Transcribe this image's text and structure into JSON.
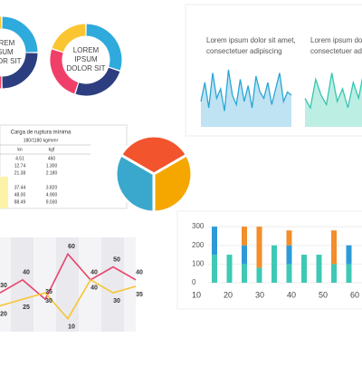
{
  "donuts": [
    {
      "lines": [
        "LOREM",
        "IPSUM",
        "DOLOR SIT"
      ],
      "values": [
        25,
        25,
        25,
        25
      ],
      "colors": [
        "#2eaadc",
        "#2c3e80",
        "#f0406a",
        "#fbc531"
      ]
    },
    {
      "lines": [
        "LOREM",
        "IPSUM",
        "DOLOR SIT"
      ],
      "values": [
        30,
        25,
        25,
        20
      ],
      "colors": [
        "#2eaadc",
        "#2c3e80",
        "#f0406a",
        "#fbc531"
      ]
    }
  ],
  "area_charts": [
    {
      "title": [
        "Lorem ipsum dolor sit amet,",
        "consectetuer adipiscing"
      ],
      "color": "#2aa6d6",
      "fill": "#bfe3f3",
      "values": [
        40,
        70,
        30,
        85,
        45,
        60,
        25,
        90,
        50,
        35,
        75,
        40,
        65,
        30,
        80,
        55,
        45,
        70,
        35,
        60,
        85,
        40,
        55,
        50
      ]
    },
    {
      "title": [
        "Lorem ipsum dolor sit",
        "consectetuer ad"
      ],
      "color": "#36c6b0",
      "fill": "#bdeee4",
      "values": [
        45,
        30,
        75,
        50,
        35,
        85,
        40,
        60,
        30,
        70,
        45,
        90,
        35,
        55,
        65
      ]
    }
  ],
  "table": {
    "header": "Carga de ruptura mínima",
    "subheader": "180/1180 kg/mm²",
    "columns": [
      "kn",
      "kgf"
    ],
    "rows": [
      [
        "4.51",
        "460"
      ],
      [
        "12.74",
        "1.300"
      ],
      [
        "21.38",
        "2.180"
      ],
      [
        "",
        ""
      ],
      [
        "37.44",
        "3.820"
      ],
      [
        "48.00",
        "4.900"
      ],
      [
        "88.49",
        "9.030"
      ]
    ]
  },
  "pie": {
    "values": [
      33.3,
      33.3,
      33.3
    ],
    "colors": [
      "#f2542d",
      "#f5a700",
      "#3aa8cc"
    ]
  },
  "line_chart": {
    "ylim": [
      0,
      70
    ],
    "series": [
      {
        "color": "#e8436b",
        "values": [
          30,
          40,
          25,
          60,
          40,
          50,
          40
        ]
      },
      {
        "color": "#f7c531",
        "values": [
          20,
          25,
          30,
          10,
          40,
          30,
          35
        ]
      }
    ]
  },
  "bar_chart": {
    "ylim": [
      0,
      320
    ],
    "yticks": [
      0,
      100,
      200,
      300
    ],
    "xlabels": [
      10,
      20,
      30,
      40,
      50,
      60
    ],
    "series": [
      {
        "color": "#3ec9b5",
        "values": [
          150,
          150,
          100,
          80,
          200,
          100,
          150,
          150,
          100,
          100
        ]
      },
      {
        "color": "#2d9ad8",
        "values": [
          150,
          0,
          100,
          0,
          0,
          100,
          0,
          0,
          0,
          100
        ]
      },
      {
        "color": "#f28e2b",
        "values": [
          0,
          0,
          100,
          220,
          0,
          80,
          0,
          0,
          180,
          0
        ]
      }
    ]
  }
}
